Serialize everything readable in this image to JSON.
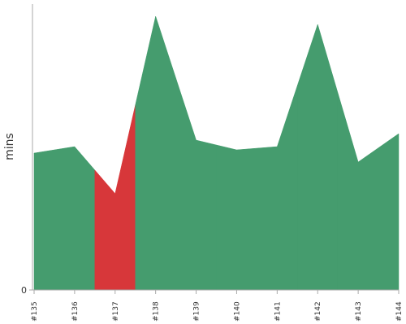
{
  "chart_data": {
    "type": "area",
    "y_label": "mins",
    "categories": [
      "#135",
      "#136",
      "#137",
      "#138",
      "#139",
      "#140",
      "#141",
      "#142",
      "#143",
      "#144"
    ],
    "values": [
      1.69,
      1.77,
      1.19,
      3.38,
      1.85,
      1.73,
      1.77,
      3.28,
      1.58,
      1.93
    ],
    "colors": [
      "#459c6e",
      "#459c6e",
      "#d7373a",
      "#459c6e",
      "#459c6e",
      "#459c6e",
      "#459c6e",
      "#459c6e",
      "#459c6e",
      "#459c6e"
    ],
    "ylim": [
      0,
      3.53
    ],
    "yticks": [
      0
    ]
  }
}
